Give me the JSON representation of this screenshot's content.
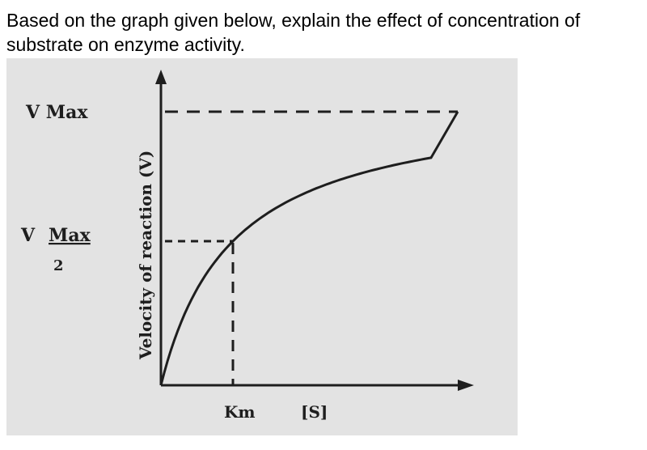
{
  "question": {
    "text": "Based on the graph given below, explain the effect of concentration of substrate on enzyme activity."
  },
  "colors": {
    "paper": "#e3e3e3",
    "ink": "#1e1e1e",
    "text": "#000000"
  },
  "chart_data": {
    "type": "line",
    "title": "",
    "xlabel": "[S]",
    "ylabel": "Velocity of reaction (V)",
    "x_tick_labels": [
      "Km"
    ],
    "y_tick_labels": {
      "vmax": "V  Max",
      "half_v": "V",
      "half_numerator": "Max",
      "half_denominator": "2"
    },
    "series": [
      {
        "curve": "michaelis-menten",
        "vmax": 1.0,
        "km": 1.0,
        "x": [
          0,
          0.25,
          0.5,
          0.75,
          1,
          1.5,
          2,
          3,
          4,
          5,
          6
        ],
        "y": [
          0,
          0.2,
          0.33,
          0.43,
          0.5,
          0.6,
          0.67,
          0.75,
          0.8,
          0.83,
          0.86
        ]
      }
    ],
    "reference_lines": {
      "vmax_dashed": true,
      "half_vmax_dashed": true,
      "km_dashed": true
    },
    "grid": false,
    "legend": false
  }
}
